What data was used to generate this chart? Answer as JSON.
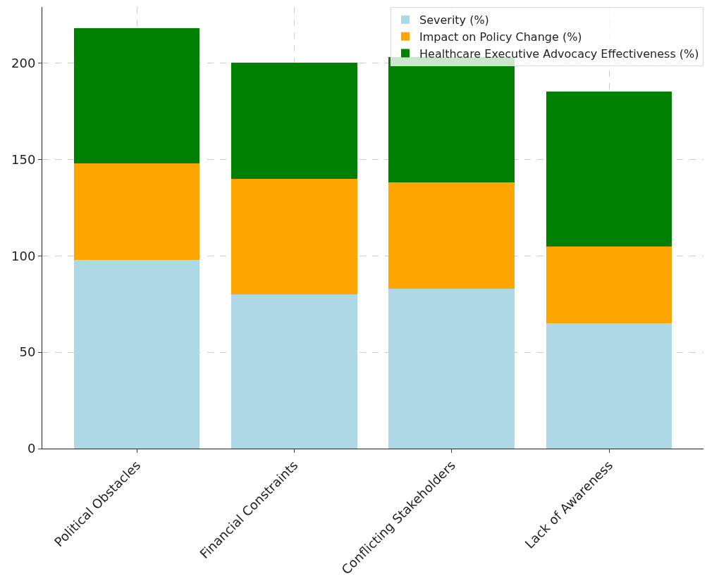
{
  "chart_data": {
    "type": "bar",
    "stacked": true,
    "categories": [
      "Political Obstacles",
      "Financial Constraints",
      "Conflicting Stakeholders",
      "Lack of Awareness"
    ],
    "series": [
      {
        "name": "Severity (%)",
        "color": "#add8e6",
        "values": [
          98,
          80,
          83,
          65
        ]
      },
      {
        "name": "Impact on Policy Change (%)",
        "color": "#ffa500",
        "values": [
          50,
          60,
          55,
          40
        ]
      },
      {
        "name": "Healthcare Executive Advocacy Effectiveness (%)",
        "color": "#008000",
        "values": [
          70,
          60,
          65,
          80
        ]
      }
    ],
    "ylim": [
      0,
      229
    ],
    "yticks": [
      0,
      50,
      100,
      150,
      200
    ],
    "grid": true,
    "legend": "top right"
  }
}
